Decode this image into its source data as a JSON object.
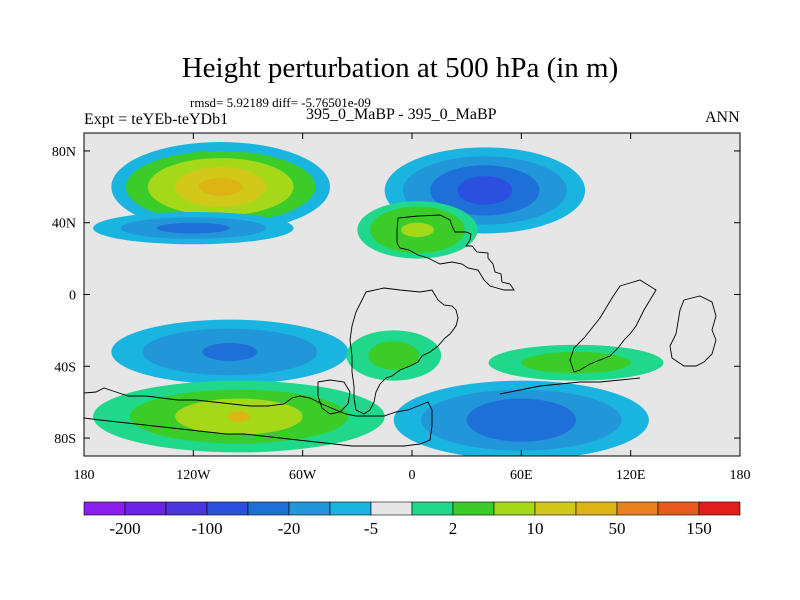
{
  "chart_data": {
    "type": "contour-map",
    "title": "Height perturbation at 500 hPa (in m)",
    "stats_text": "rmsd= 5.92189 diff= -5.76501e-09",
    "left_label": "Expt = teYEb-teYDb1",
    "center_label": "395_0_MaBP - 395_0_MaBP",
    "right_label": "ANN",
    "x_range": [
      -180,
      180
    ],
    "y_range": [
      -90,
      90
    ],
    "x_ticks": [
      {
        "value": -180,
        "label": "180"
      },
      {
        "value": -120,
        "label": "120W"
      },
      {
        "value": -60,
        "label": "60W"
      },
      {
        "value": 0,
        "label": "0"
      },
      {
        "value": 60,
        "label": "60E"
      },
      {
        "value": 120,
        "label": "120E"
      },
      {
        "value": 180,
        "label": "180"
      }
    ],
    "y_ticks": [
      {
        "value": 80,
        "label": "80N"
      },
      {
        "value": 40,
        "label": "40N"
      },
      {
        "value": 0,
        "label": "0"
      },
      {
        "value": -40,
        "label": "40S"
      },
      {
        "value": -80,
        "label": "80S"
      }
    ],
    "colorbar": {
      "colors": [
        "#8c1ff0",
        "#6a24e6",
        "#4b35e0",
        "#2b50e0",
        "#1f6fd8",
        "#2196d8",
        "#1ab4e0",
        "#e6e6e6",
        "#1fd88c",
        "#3ccc2a",
        "#a6d81a",
        "#d2c81a",
        "#dcb414",
        "#e8821e",
        "#e85a1e",
        "#e01e1e"
      ],
      "labels": [
        {
          "after_index": 0,
          "text": "-200"
        },
        {
          "after_index": 2,
          "text": "-100"
        },
        {
          "after_index": 4,
          "text": "-20"
        },
        {
          "after_index": 6,
          "text": "-5"
        },
        {
          "after_index": 8,
          "text": "2"
        },
        {
          "after_index": 10,
          "text": "10"
        },
        {
          "after_index": 12,
          "text": "50"
        },
        {
          "after_index": 14,
          "text": "150"
        }
      ]
    },
    "anomaly_regions": [
      {
        "name": "nh-pacific-positive",
        "lon": -105,
        "lat": 60,
        "levels": [
          [
            60,
            25,
            "#1ab4e0"
          ],
          [
            52,
            20,
            "#3ccc2a"
          ],
          [
            40,
            16,
            "#a6d81a"
          ],
          [
            25,
            11,
            "#d2c81a"
          ],
          [
            12,
            5,
            "#dcb414"
          ]
        ]
      },
      {
        "name": "nh-pacific-negative",
        "lon": -120,
        "lat": 37,
        "levels": [
          [
            55,
            9,
            "#1ab4e0"
          ],
          [
            40,
            6,
            "#2196d8"
          ],
          [
            20,
            3,
            "#1f6fd8"
          ]
        ]
      },
      {
        "name": "nh-eurasia-negative",
        "lon": 40,
        "lat": 58,
        "levels": [
          [
            55,
            24,
            "#1ab4e0"
          ],
          [
            45,
            19,
            "#2196d8"
          ],
          [
            30,
            14,
            "#1f6fd8"
          ],
          [
            15,
            8,
            "#2b50e0"
          ]
        ]
      },
      {
        "name": "nh-atlantic-positive",
        "lon": 3,
        "lat": 36,
        "levels": [
          [
            33,
            16,
            "#1fd88c"
          ],
          [
            26,
            13,
            "#3ccc2a"
          ],
          [
            9,
            4,
            "#a6d81a"
          ]
        ]
      },
      {
        "name": "sh-pacific-negative",
        "lon": -100,
        "lat": -32,
        "levels": [
          [
            65,
            18,
            "#1ab4e0"
          ],
          [
            48,
            13,
            "#2196d8"
          ],
          [
            15,
            5,
            "#1f6fd8"
          ]
        ]
      },
      {
        "name": "sh-atlantic-positive",
        "lon": -10,
        "lat": -34,
        "levels": [
          [
            26,
            14,
            "#1fd88c"
          ],
          [
            14,
            8,
            "#3ccc2a"
          ]
        ]
      },
      {
        "name": "sh-southern-positive",
        "lon": -95,
        "lat": -68,
        "levels": [
          [
            80,
            20,
            "#1fd88c"
          ],
          [
            60,
            15,
            "#3ccc2a"
          ],
          [
            35,
            10,
            "#a6d81a"
          ],
          [
            6,
            3,
            "#dcb414"
          ]
        ]
      },
      {
        "name": "sh-indian-negative",
        "lon": 60,
        "lat": -70,
        "levels": [
          [
            70,
            22,
            "#1ab4e0"
          ],
          [
            55,
            17,
            "#2196d8"
          ],
          [
            30,
            12,
            "#1f6fd8"
          ]
        ]
      },
      {
        "name": "sh-indian-positive",
        "lon": 90,
        "lat": -38,
        "levels": [
          [
            48,
            10,
            "#1fd88c"
          ],
          [
            30,
            6,
            "#3ccc2a"
          ]
        ]
      }
    ]
  }
}
